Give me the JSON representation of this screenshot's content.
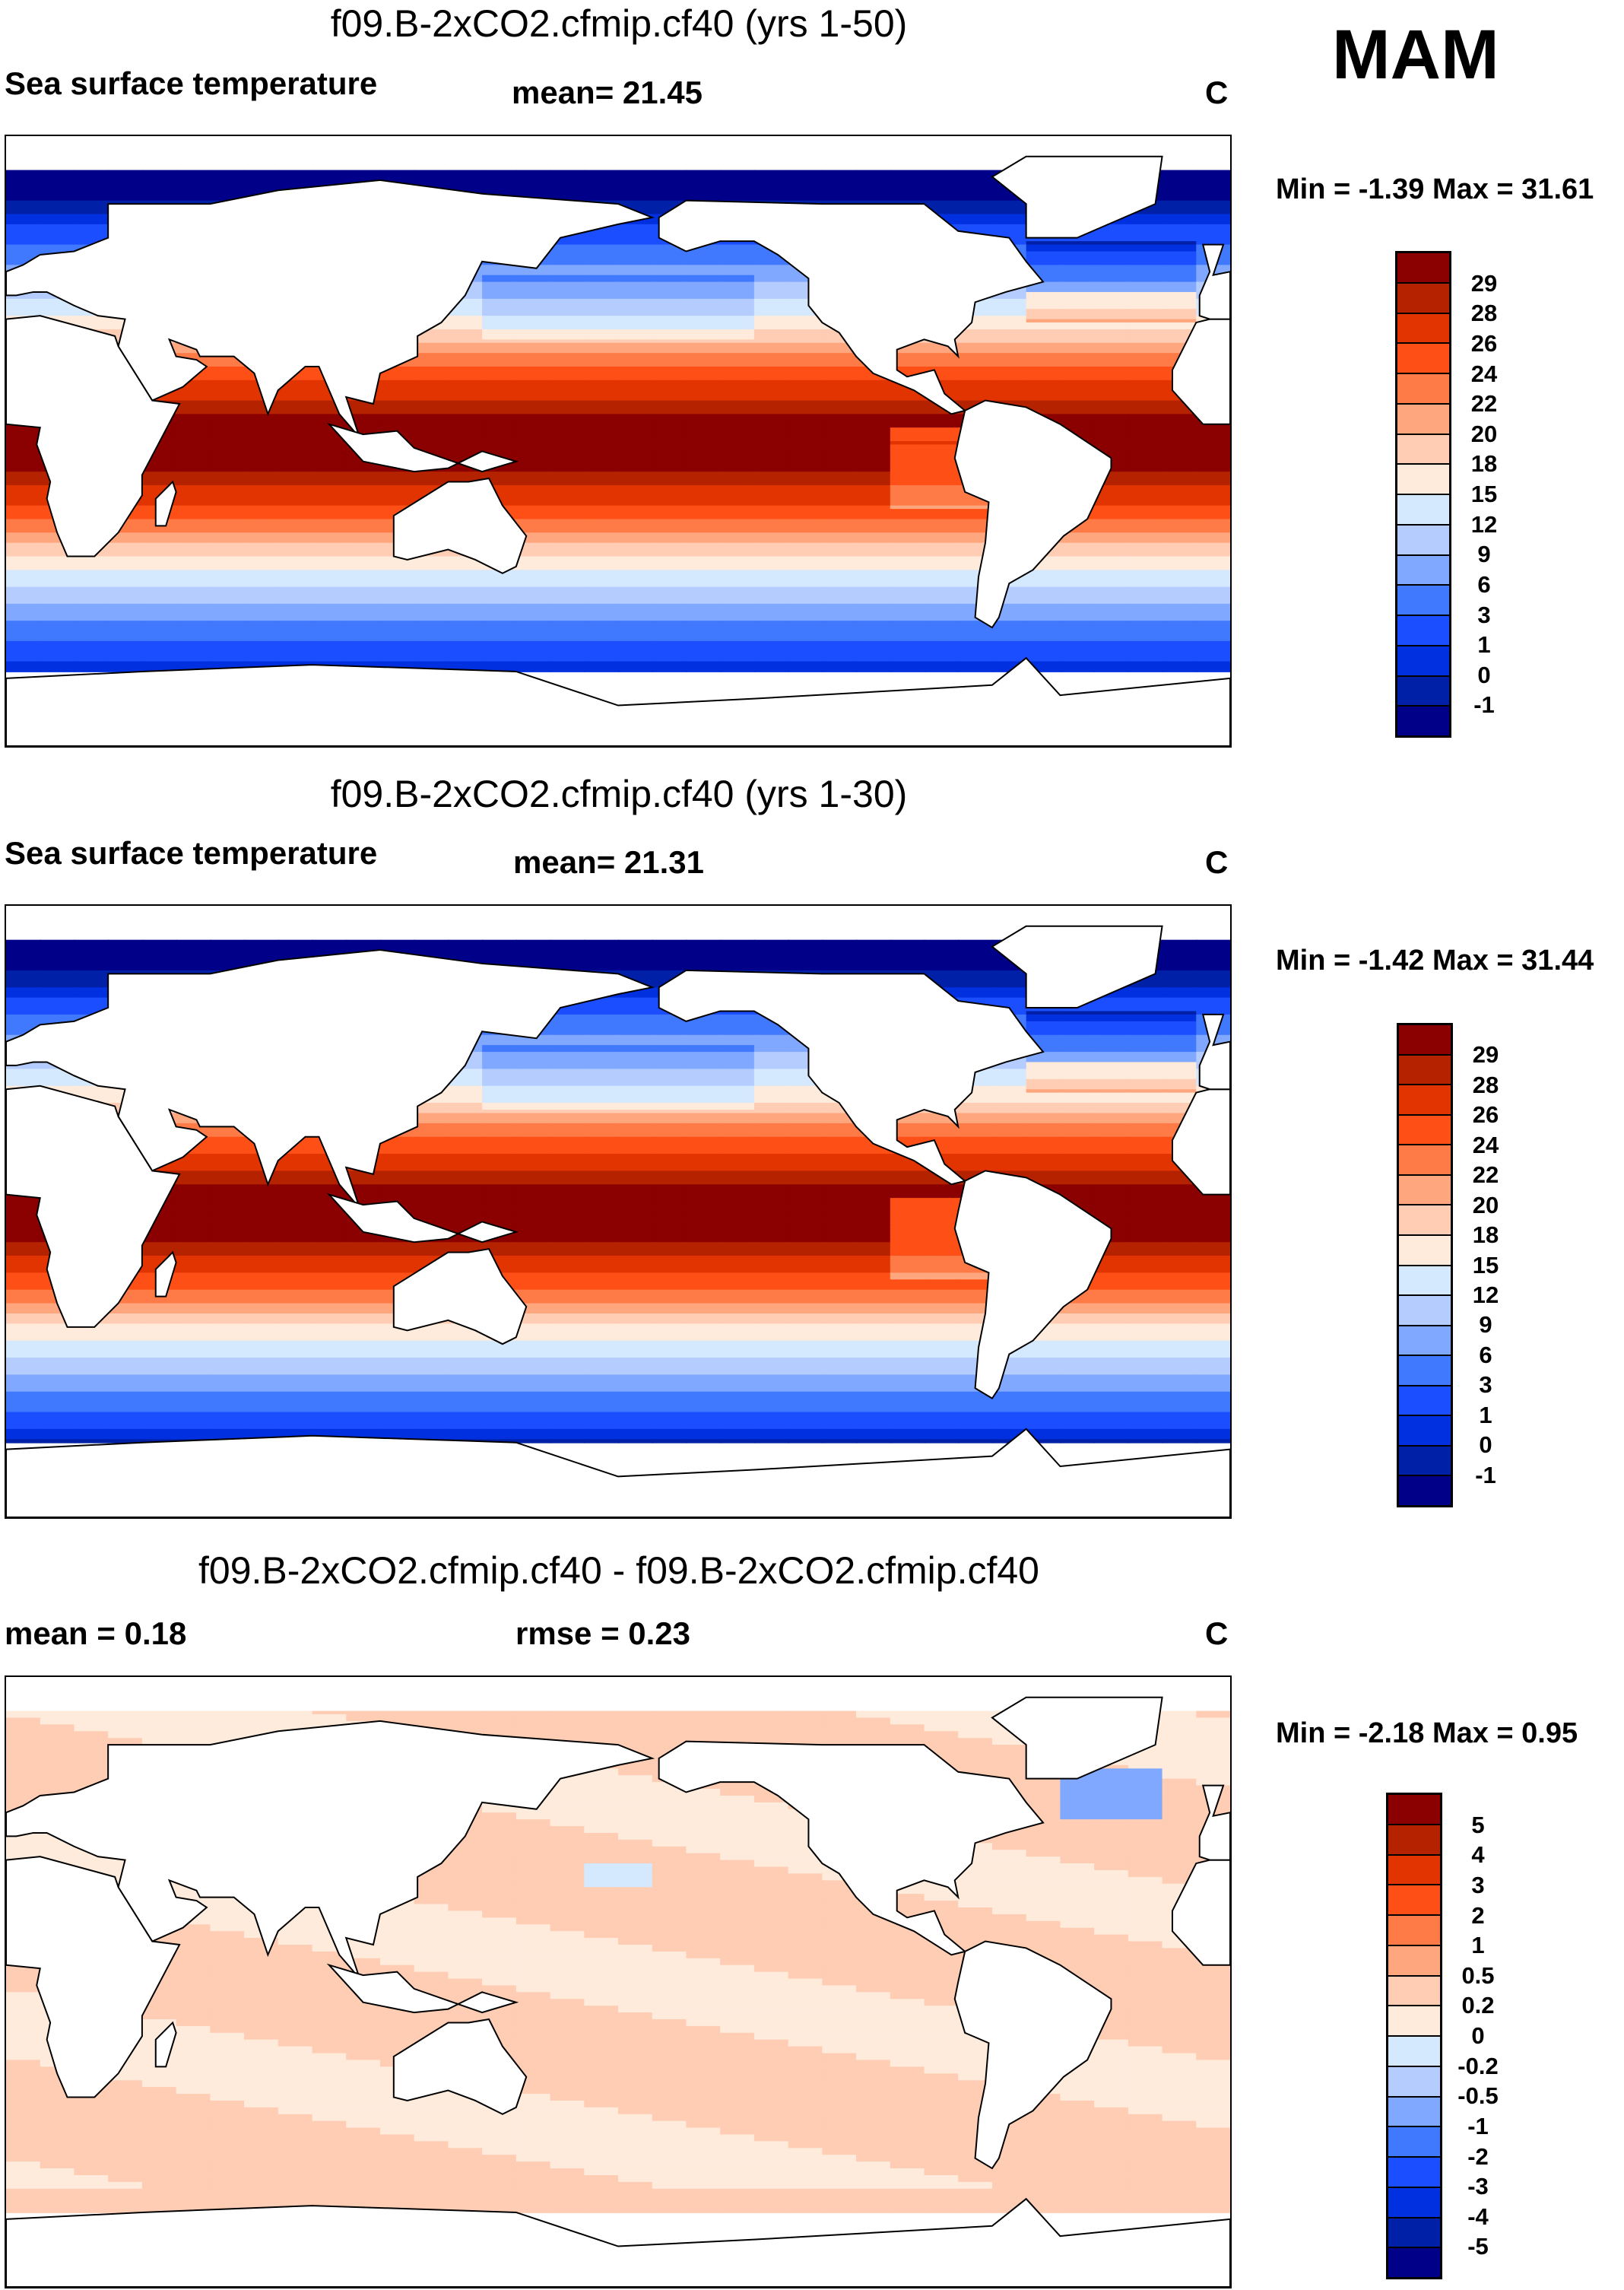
{
  "season": "MAM",
  "units": "C",
  "panels": [
    {
      "title": "f09.B-2xCO2.cfmip.cf40 (yrs 1-50)",
      "left_label": "Sea surface temperature",
      "center_label": "mean=  21.45",
      "units": "C",
      "min_label": "Min =",
      "min": "-1.39",
      "max_label": "Max =",
      "max": "31.61",
      "levels": [
        "29",
        "28",
        "26",
        "24",
        "22",
        "20",
        "18",
        "15",
        "12",
        "9",
        "6",
        "3",
        "1",
        "0",
        "-1"
      ]
    },
    {
      "title": "f09.B-2xCO2.cfmip.cf40 (yrs 1-30)",
      "left_label": "Sea surface temperature",
      "center_label": "mean=  21.31",
      "units": "C",
      "min_label": "Min =",
      "min": "-1.42",
      "max_label": "Max =",
      "max": "31.44",
      "levels": [
        "29",
        "28",
        "26",
        "24",
        "22",
        "20",
        "18",
        "15",
        "12",
        "9",
        "6",
        "3",
        "1",
        "0",
        "-1"
      ]
    },
    {
      "title": "f09.B-2xCO2.cfmip.cf40 - f09.B-2xCO2.cfmip.cf40",
      "left_label": "mean =   0.18",
      "center_label": "rmse =   0.23",
      "units": "C",
      "min_label": "Min =",
      "min": "-2.18",
      "max_label": "Max =",
      "max": "0.95",
      "levels": [
        "5",
        "4",
        "3",
        "2",
        "1",
        "0.5",
        "0.2",
        "0",
        "-0.2",
        "-0.5",
        "-1",
        "-2",
        "-3",
        "-4",
        "-5"
      ]
    }
  ],
  "colormap": [
    "#8b0000",
    "#b52200",
    "#e23400",
    "#fe5016",
    "#fe7b47",
    "#fea77f",
    "#fecdb4",
    "#feebdc",
    "#d4e8fe",
    "#b4ccfe",
    "#80a8fe",
    "#4078fe",
    "#1a4efe",
    "#0030e0",
    "#0020a8",
    "#000088"
  ]
}
